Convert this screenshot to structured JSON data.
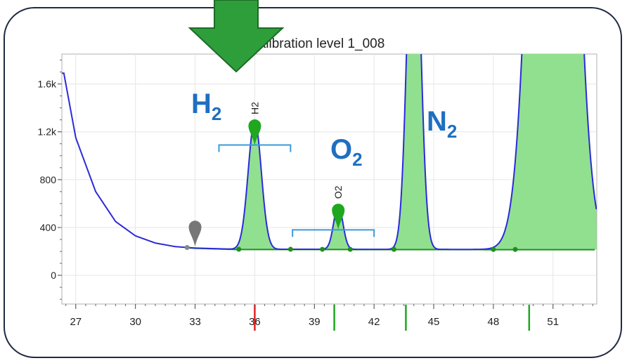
{
  "chart_data": {
    "type": "line",
    "title": "Calibration level 1_008",
    "xlabel": "",
    "ylabel": "",
    "xlim": [
      26.3,
      53.2
    ],
    "ylim": [
      -240,
      1850
    ],
    "x_ticks": [
      27,
      30,
      33,
      36,
      39,
      42,
      45,
      48,
      51
    ],
    "y_ticks": [
      0,
      400,
      800,
      1200,
      1600
    ],
    "y_tick_labels": [
      "0",
      "400",
      "800",
      "1.2k",
      "1.6k"
    ],
    "series": [
      {
        "role": "signal",
        "color": "#2b2bd9",
        "baseline_decay": {
          "x": [
            26.4,
            27,
            28,
            29,
            30,
            31,
            32,
            33,
            35,
            53.2
          ],
          "y": [
            1690,
            1150,
            700,
            450,
            330,
            270,
            240,
            228,
            218,
            216
          ]
        },
        "peaks": [
          {
            "name": "H2",
            "center": 36.0,
            "height": 1075,
            "sigma": 0.33,
            "integrated": true
          },
          {
            "name": "O2",
            "center": 40.2,
            "height": 370,
            "sigma": 0.23,
            "integrated": true
          },
          {
            "name": "N2",
            "center": 44.0,
            "height": 3200,
            "sigma": 0.32,
            "integrated": true
          },
          {
            "name": "",
            "center": 51.0,
            "height": 9000,
            "sigma": 0.85,
            "integrated": true
          }
        ]
      }
    ],
    "integration_baseline_color": "#1f8f1f",
    "peak_fill_color": "#90e090",
    "baseline_points_x": [
      32.6,
      35.2,
      37.8,
      39.4,
      40.8,
      43.0,
      48.0,
      49.1
    ],
    "peak_markers": [
      {
        "label": "H2",
        "x": 36.0,
        "y": 1075,
        "color": "#1fa81f"
      },
      {
        "label": "O2",
        "x": 40.2,
        "y": 370,
        "color": "#1fa81f"
      },
      {
        "label": "",
        "x": 33.0,
        "y": 228,
        "color": "#777777"
      }
    ],
    "windows": [
      {
        "label": "H2",
        "x_start": 34.2,
        "x_end": 37.8,
        "y": 1090
      },
      {
        "label": "O2",
        "x_start": 37.9,
        "x_end": 42.0,
        "y": 380
      }
    ],
    "x_axis_markers": [
      {
        "x": 36.0,
        "color": "#e02020"
      },
      {
        "x": 40.0,
        "color": "#1fa81f"
      },
      {
        "x": 43.6,
        "color": "#1fa81f"
      },
      {
        "x": 49.8,
        "color": "#1fa81f"
      }
    ],
    "annotations": [
      {
        "text": "H",
        "sub": "2"
      },
      {
        "text": "O",
        "sub": "2"
      },
      {
        "text": "N",
        "sub": "2"
      }
    ],
    "grid": true
  },
  "annotation_color": "#1f6fc1",
  "arrow_color": "#2e9e3a"
}
